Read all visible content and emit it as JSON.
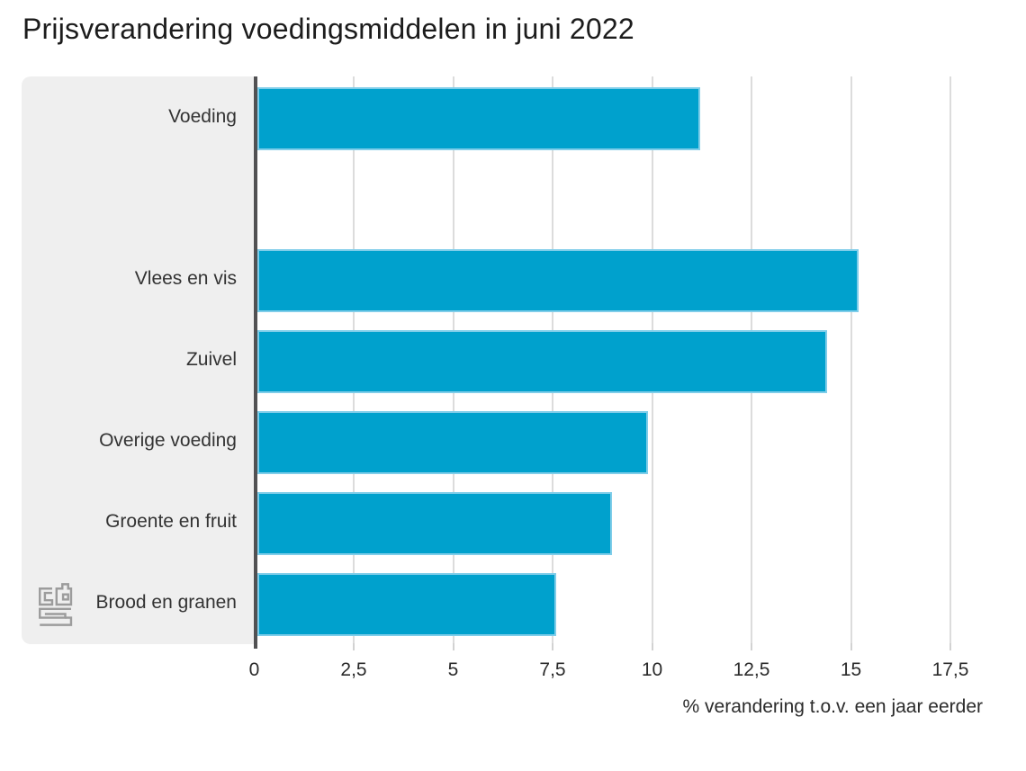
{
  "title": "Prijsverandering voedingsmiddelen in juni 2022",
  "x_axis": {
    "label": "% verandering t.o.v. een jaar eerder",
    "tick_labels": [
      "0",
      "2,5",
      "5",
      "7,5",
      "10",
      "12,5",
      "15",
      "17,5"
    ]
  },
  "branding": {
    "logo_name": "cbs-logo"
  },
  "colors": {
    "bar": "#00a1cd",
    "bar_edge": "#7fcde9",
    "panel": "#efefef",
    "axis_line": "#515153",
    "gridline": "#dcdcdc",
    "text": "#2b2b2b",
    "logo": "#9c9c9c"
  },
  "chart_data": {
    "type": "bar",
    "orientation": "horizontal",
    "title": "Prijsverandering voedingsmiddelen in juni 2022",
    "categories": [
      "Voeding",
      "",
      "Vlees en vis",
      "Zuivel",
      "Overige voeding",
      "Groente en fruit",
      "Brood en granen"
    ],
    "values": [
      11.2,
      null,
      15.2,
      14.4,
      9.9,
      9.0,
      7.6
    ],
    "xlabel": "% verandering t.o.v. een jaar eerder",
    "ylabel": "",
    "xlim": [
      0,
      17.5
    ],
    "x_ticks": [
      0,
      2.5,
      5,
      7.5,
      10,
      12.5,
      15,
      17.5
    ],
    "x_tick_labels": [
      "0",
      "2,5",
      "5",
      "7,5",
      "10",
      "12,5",
      "15",
      "17,5"
    ],
    "grid": true,
    "legend": false,
    "bar_color": "#00a1cd",
    "unit": "%"
  }
}
